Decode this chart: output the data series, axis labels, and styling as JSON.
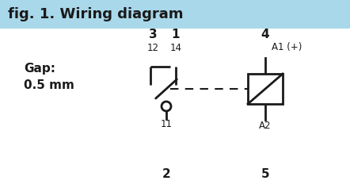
{
  "title": "fig. 1. Wiring diagram",
  "title_bg": "#a8d8ea",
  "title_color": "#1a1a1a",
  "gap_label": "Gap:",
  "gap_value": "0.5 mm",
  "label_3": "3",
  "label_1": "1",
  "label_12": "12",
  "label_14": "14",
  "label_11": "11",
  "label_2": "2",
  "label_4": "4",
  "label_A1": "A1 (+)",
  "label_A2": "A2",
  "label_5": "5",
  "bg_color": "#ffffff",
  "line_color": "#1a1a1a",
  "title_fontsize": 13,
  "label_big_fontsize": 11,
  "label_small_fontsize": 8.5
}
